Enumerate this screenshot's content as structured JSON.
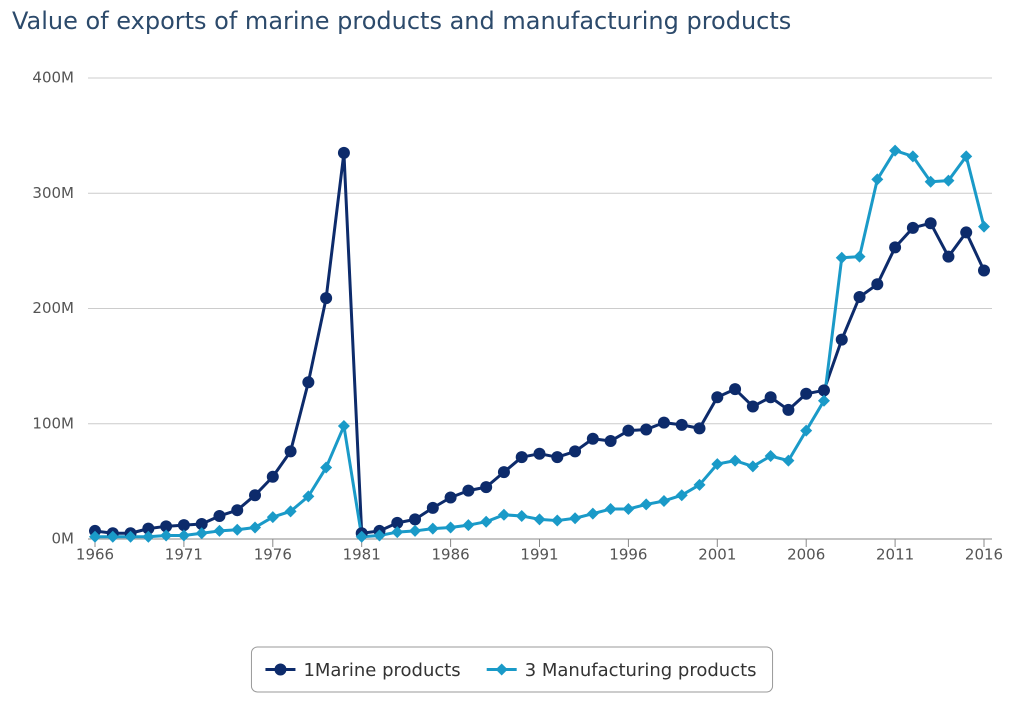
{
  "chart_data": {
    "type": "line",
    "title": "Value of exports of marine products and manufacturing products",
    "x": [
      1966,
      1967,
      1968,
      1969,
      1970,
      1971,
      1972,
      1973,
      1974,
      1975,
      1976,
      1977,
      1978,
      1979,
      1980,
      1981,
      1982,
      1983,
      1984,
      1985,
      1986,
      1987,
      1988,
      1989,
      1990,
      1991,
      1992,
      1993,
      1994,
      1995,
      1996,
      1997,
      1998,
      1999,
      2000,
      2001,
      2002,
      2003,
      2004,
      2005,
      2006,
      2007,
      2008,
      2009,
      2010,
      2011,
      2012,
      2013,
      2014,
      2015,
      2016
    ],
    "xlim": [
      1966,
      2016
    ],
    "xticks": [
      1966,
      1971,
      1976,
      1981,
      1986,
      1991,
      1996,
      2001,
      2006,
      2011,
      2016
    ],
    "ylim": [
      0,
      400000000
    ],
    "yticks": [
      {
        "value": 0,
        "label": "0M"
      },
      {
        "value": 100000000,
        "label": "100M"
      },
      {
        "value": 200000000,
        "label": "200M"
      },
      {
        "value": 300000000,
        "label": "300M"
      },
      {
        "value": 400000000,
        "label": "400M"
      }
    ],
    "grid": true,
    "legend": "bottom",
    "series": [
      {
        "name": "1Marine products",
        "color": "#0d2b6b",
        "marker": "circle",
        "values": [
          7000000,
          5000000,
          5000000,
          9000000,
          11000000,
          12000000,
          13000000,
          20000000,
          25000000,
          38000000,
          54000000,
          76000000,
          136000000,
          209000000,
          335000000,
          5000000,
          7000000,
          14000000,
          17000000,
          27000000,
          36000000,
          42000000,
          45000000,
          58000000,
          71000000,
          74000000,
          71000000,
          76000000,
          87000000,
          85000000,
          94000000,
          95000000,
          101000000,
          99000000,
          96000000,
          123000000,
          130000000,
          115000000,
          123000000,
          112000000,
          126000000,
          129000000,
          173000000,
          210000000,
          221000000,
          253000000,
          270000000,
          274000000,
          245000000,
          266000000,
          233000000
        ]
      },
      {
        "name": "3 Manufacturing products",
        "color": "#1a9ac8",
        "marker": "diamond",
        "values": [
          2000000,
          2000000,
          2000000,
          2000000,
          3000000,
          3000000,
          5000000,
          7000000,
          8000000,
          10000000,
          19000000,
          24000000,
          37000000,
          62000000,
          98000000,
          2000000,
          3000000,
          6000000,
          7000000,
          9000000,
          10000000,
          12000000,
          15000000,
          21000000,
          20000000,
          17000000,
          16000000,
          18000000,
          22000000,
          26000000,
          26000000,
          30000000,
          33000000,
          38000000,
          47000000,
          65000000,
          68000000,
          63000000,
          72000000,
          68000000,
          94000000,
          120000000,
          244000000,
          245000000,
          312000000,
          337000000,
          332000000,
          310000000,
          311000000,
          332000000,
          271000000
        ]
      }
    ]
  }
}
